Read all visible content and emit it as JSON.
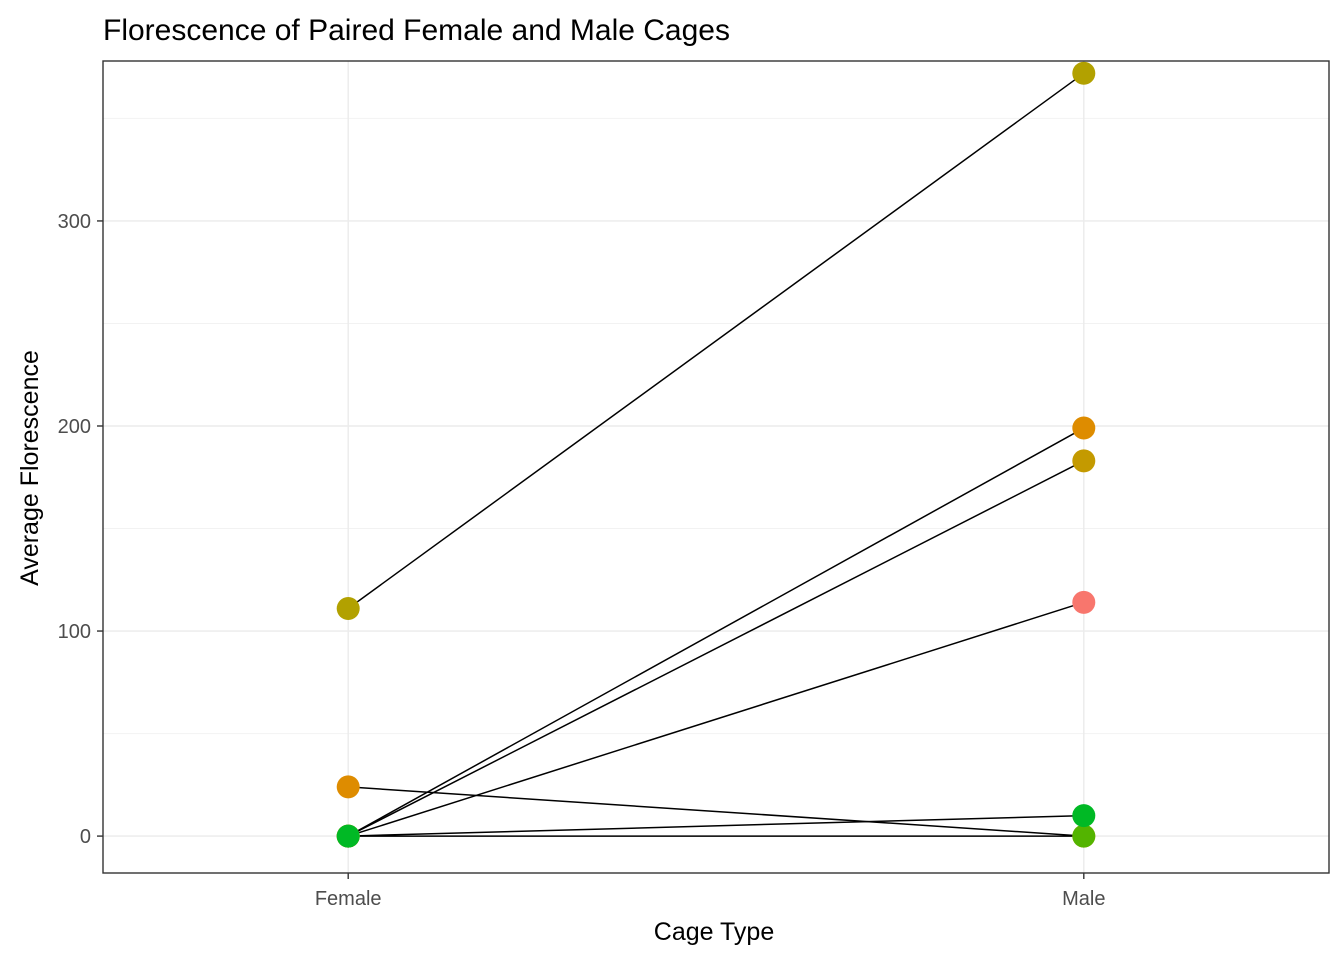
{
  "chart_data": {
    "type": "line",
    "title": "Florescence of Paired Female and Male Cages",
    "xlabel": "Cage Type",
    "ylabel": "Average Florescence",
    "categories": [
      "Female",
      "Male"
    ],
    "ylim": [
      -18,
      378
    ],
    "yticks": [
      0,
      100,
      200,
      300
    ],
    "grid": true,
    "legend": "none",
    "colors": {
      "panel_border": "#333333",
      "grid_major": "#ebebeb",
      "grid_minor": "#f2f2f2",
      "line": "#000000",
      "tick_text": "#4d4d4d"
    },
    "series": [
      {
        "values": [
          111,
          372
        ],
        "color": "#b2a100"
      },
      {
        "values": [
          0,
          199
        ],
        "color": "#de8c00"
      },
      {
        "values": [
          0,
          183
        ],
        "color": "#c49a00"
      },
      {
        "values": [
          0,
          114
        ],
        "color": "#f8766d"
      },
      {
        "values": [
          24,
          0
        ],
        "color": "#de8c00"
      },
      {
        "values": [
          0,
          0
        ],
        "color": "#53b400"
      },
      {
        "values": [
          0,
          10
        ],
        "color": "#00b925"
      }
    ]
  }
}
